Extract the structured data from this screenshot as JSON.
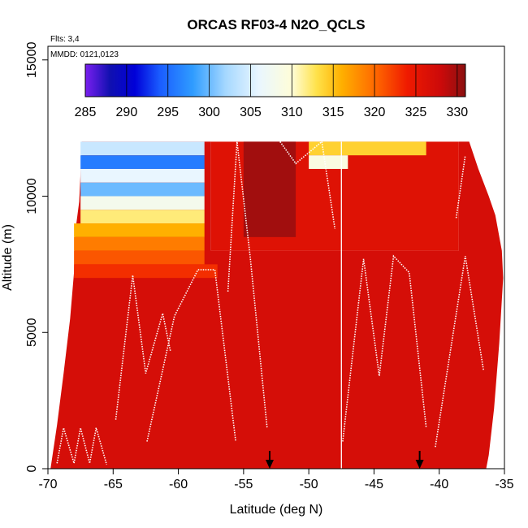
{
  "chart_data": {
    "type": "heatmap",
    "title": "ORCAS RF03-4 N2O_QCLS",
    "notes": [
      "Flts: 3,4",
      "MMDD: 0121,0123"
    ],
    "xlabel": "Latitude (deg N)",
    "ylabel": "Altitude (m)",
    "xlim": [
      -70,
      -35
    ],
    "ylim": [
      0,
      15500
    ],
    "xticks": [
      "-70",
      "-65",
      "-60",
      "-55",
      "-50",
      "-45",
      "-40",
      "-35"
    ],
    "yticks": [
      "0",
      "5000",
      "10000",
      "15000"
    ],
    "colorbar": {
      "ticks": [
        "285",
        "290",
        "295",
        "300",
        "305",
        "310",
        "315",
        "320",
        "325",
        "330"
      ],
      "min": 285,
      "max": 331,
      "stops": [
        {
          "v": 285,
          "color": "#7a1ff0"
        },
        {
          "v": 288,
          "color": "#1010b0"
        },
        {
          "v": 291,
          "color": "#0000d8"
        },
        {
          "v": 294,
          "color": "#1a5cff"
        },
        {
          "v": 298,
          "color": "#2f9cff"
        },
        {
          "v": 302,
          "color": "#a6d8ff"
        },
        {
          "v": 306,
          "color": "#e9f6ff"
        },
        {
          "v": 310,
          "color": "#fffdd8"
        },
        {
          "v": 313,
          "color": "#ffe24a"
        },
        {
          "v": 316,
          "color": "#ffb000"
        },
        {
          "v": 320,
          "color": "#ff6a00"
        },
        {
          "v": 324,
          "color": "#ef1a00"
        },
        {
          "v": 328,
          "color": "#cc0a0a"
        },
        {
          "v": 331,
          "color": "#8b1010"
        }
      ]
    },
    "field": {
      "background_value": 327,
      "right_block_value": 326,
      "dark_patch_value": 330,
      "bands": [
        {
          "alt": 11750,
          "xs": [
            -67.5,
            -58
          ],
          "v": 304
        },
        {
          "alt": 11250,
          "xs": [
            -67.5,
            -58
          ],
          "v": 296
        },
        {
          "alt": 10750,
          "xs": [
            -67.5,
            -58
          ],
          "v": 306
        },
        {
          "alt": 10250,
          "xs": [
            -67.5,
            -58
          ],
          "v": 300
        },
        {
          "alt": 9750,
          "xs": [
            -67.5,
            -58
          ],
          "v": 308
        },
        {
          "alt": 9250,
          "xs": [
            -67.5,
            -58
          ],
          "v": 312
        },
        {
          "alt": 8750,
          "xs": [
            -68,
            -58
          ],
          "v": 316
        },
        {
          "alt": 8250,
          "xs": [
            -68,
            -58
          ],
          "v": 319
        },
        {
          "alt": 7750,
          "xs": [
            -68,
            -58
          ],
          "v": 321
        },
        {
          "alt": 7250,
          "xs": [
            -68,
            -57
          ],
          "v": 323
        },
        {
          "alt": 11750,
          "xs": [
            -50,
            -41
          ],
          "v": 314
        },
        {
          "alt": 11250,
          "xs": [
            -50,
            -47
          ],
          "v": 309
        }
      ]
    },
    "arrows": [
      -53,
      -41.5
    ],
    "vertical_line": -47.5
  }
}
